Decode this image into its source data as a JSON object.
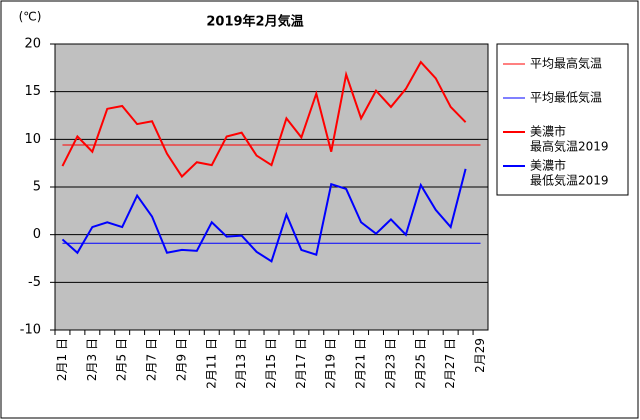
{
  "chart_data": {
    "type": "line",
    "title": "2019年2月気温",
    "y_label": "(℃)",
    "categories": [
      "2月1 日",
      null,
      "2月3 日",
      null,
      "2月5 日",
      null,
      "2月7 日",
      null,
      "2月9 日",
      null,
      "2月11 日",
      null,
      "2月13 日",
      null,
      "2月15 日",
      null,
      "2月17 日",
      null,
      "2月19 日",
      null,
      "2月21 日",
      null,
      "2月23 日",
      null,
      "2月25 日",
      null,
      "2月27 日",
      null,
      "2月29"
    ],
    "reference_lines": [
      {
        "name": [
          "平均最高気温"
        ],
        "color": "#ff0000",
        "value": 9.4
      },
      {
        "name": [
          "平均最低気温"
        ],
        "color": "#0000ff",
        "value": -0.9
      }
    ],
    "series": [
      {
        "name": [
          "美濃市",
          "最高気温2019"
        ],
        "color": "#ff0000",
        "values": [
          7.2,
          10.3,
          8.7,
          13.2,
          13.5,
          11.6,
          11.9,
          8.5,
          6.1,
          7.6,
          7.3,
          10.3,
          10.7,
          8.3,
          7.3,
          12.2,
          10.2,
          14.8,
          8.7,
          16.8,
          12.2,
          15.1,
          13.4,
          15.3,
          18.1,
          16.4,
          13.4,
          11.8,
          null
        ]
      },
      {
        "name": [
          "美濃市",
          "最低気温2019"
        ],
        "color": "#0000ff",
        "values": [
          -0.5,
          -1.9,
          0.8,
          1.3,
          0.8,
          4.1,
          1.9,
          -1.9,
          -1.6,
          -1.7,
          1.3,
          -0.2,
          -0.1,
          -1.8,
          -2.8,
          2.1,
          -1.6,
          -2.1,
          5.3,
          4.8,
          1.3,
          0.1,
          1.6,
          0.0,
          5.2,
          2.6,
          0.8,
          6.9,
          null
        ]
      }
    ],
    "ylim": [
      -10,
      20
    ],
    "yticks": [
      -10,
      -5,
      0,
      5,
      10,
      15,
      20
    ],
    "grid": true,
    "legend": "right"
  }
}
